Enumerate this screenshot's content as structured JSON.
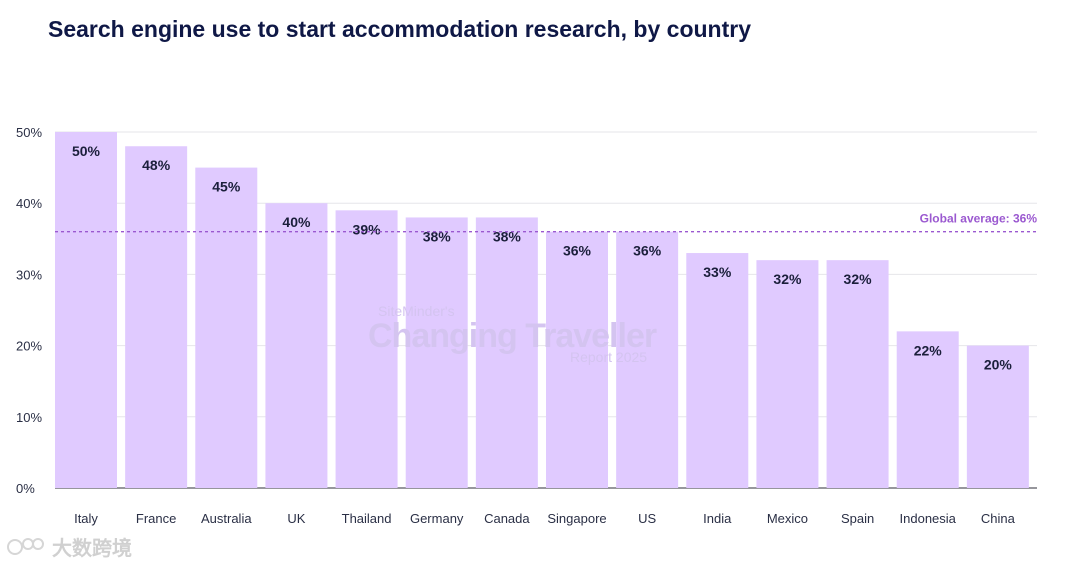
{
  "title": "Search engine use to start accommodation research, by country",
  "chart_data": {
    "type": "bar",
    "categories": [
      "Italy",
      "France",
      "Australia",
      "UK",
      "Thailand",
      "Germany",
      "Canada",
      "Singapore",
      "US",
      "India",
      "Mexico",
      "Spain",
      "Indonesia",
      "China"
    ],
    "values": [
      50,
      48,
      45,
      40,
      39,
      38,
      38,
      36,
      36,
      33,
      32,
      32,
      22,
      20
    ],
    "value_labels": [
      "50%",
      "48%",
      "45%",
      "40%",
      "39%",
      "38%",
      "38%",
      "36%",
      "36%",
      "33%",
      "32%",
      "32%",
      "22%",
      "20%"
    ],
    "ylim": [
      0,
      50
    ],
    "yticks": [
      0,
      10,
      20,
      30,
      40,
      50
    ],
    "ytick_labels": [
      "0%",
      "10%",
      "20%",
      "30%",
      "40%",
      "50%"
    ],
    "reference_line": {
      "value": 36,
      "label": "Global average: 36%",
      "style": "dashed",
      "color": "#9b59d0"
    },
    "bar_color": "#e0caff",
    "grid": true,
    "legend": false
  },
  "watermark": {
    "line1": "SiteMinder's",
    "line2": "Changing Traveller",
    "line3": "Report 2025"
  },
  "brand": {
    "text": "大数跨境",
    "logo_icon": "brand-logo-icon"
  }
}
